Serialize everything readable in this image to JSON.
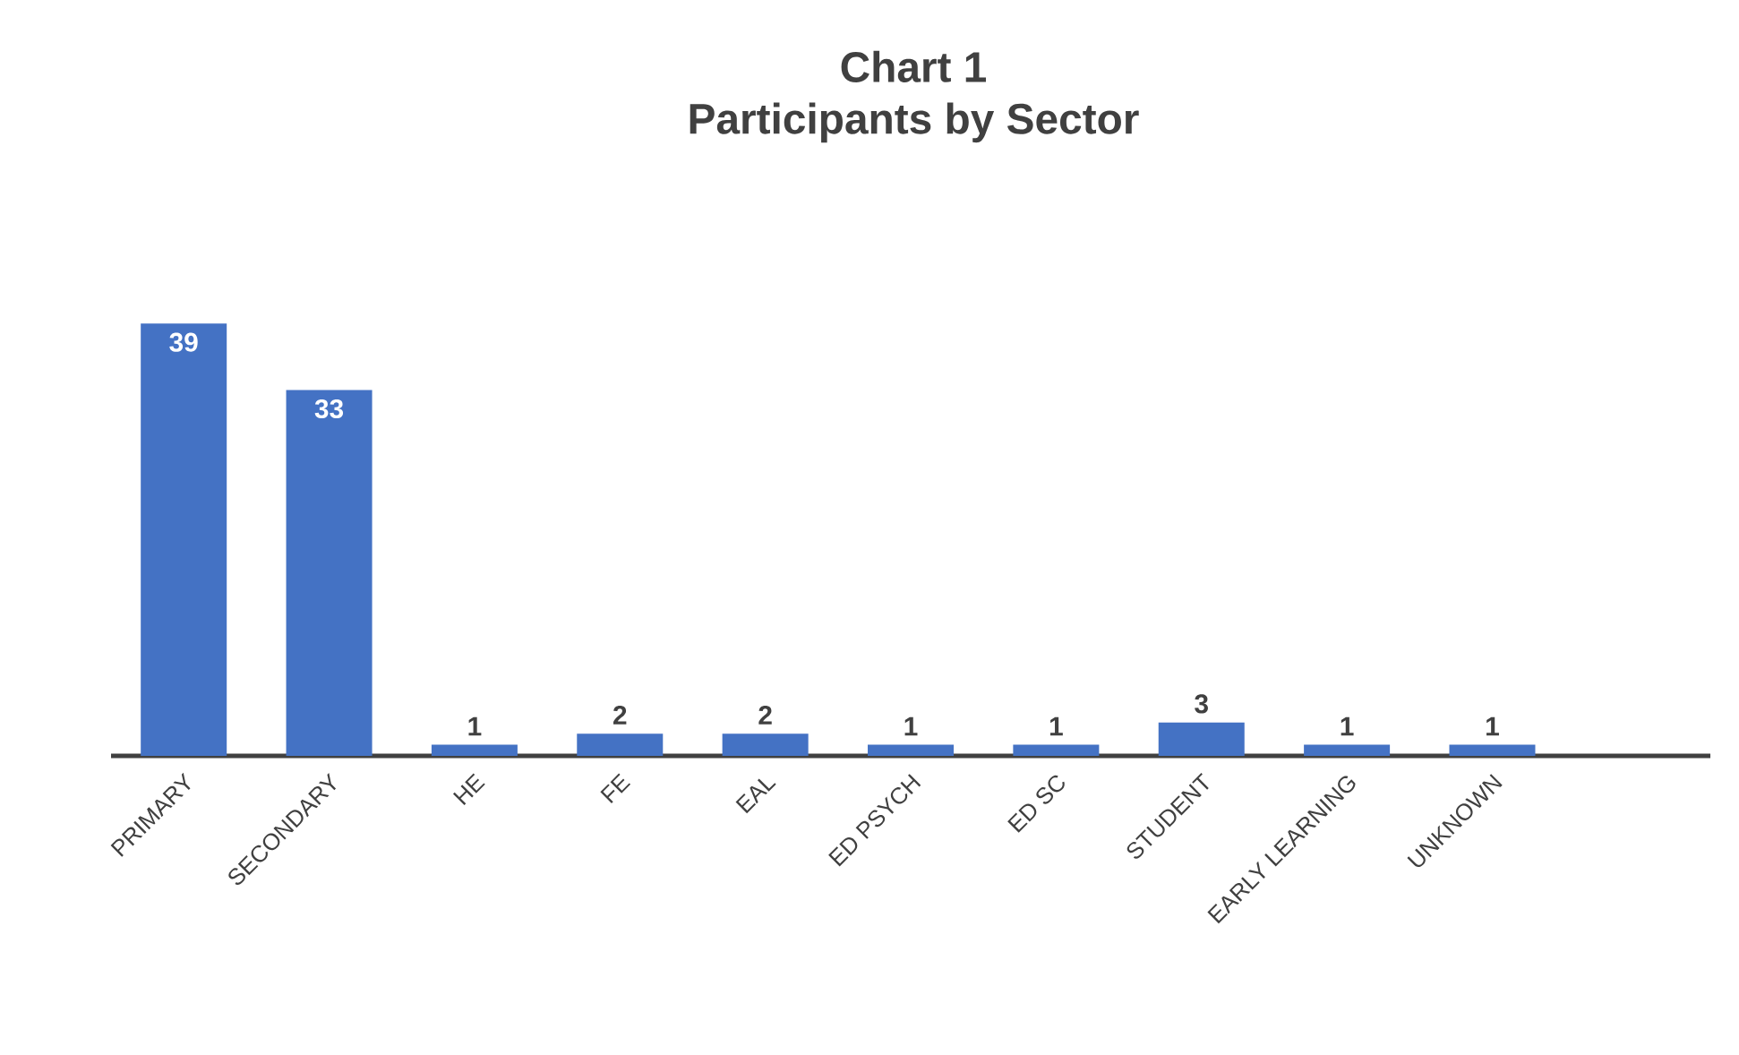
{
  "chart_data": {
    "type": "bar",
    "title": "Chart 1",
    "subtitle": "Participants by Sector",
    "categories": [
      "PRIMARY",
      "SECONDARY",
      "HE",
      "FE",
      "EAL",
      "ED PSYCH",
      "ED SC",
      "STUDENT",
      "EARLY LEARNING",
      "UNKNOWN",
      null
    ],
    "values": [
      39,
      33,
      1,
      2,
      2,
      1,
      1,
      3,
      1,
      1,
      null
    ],
    "color": "#4472c4",
    "tick_labels": "x",
    "data_labels": true
  }
}
